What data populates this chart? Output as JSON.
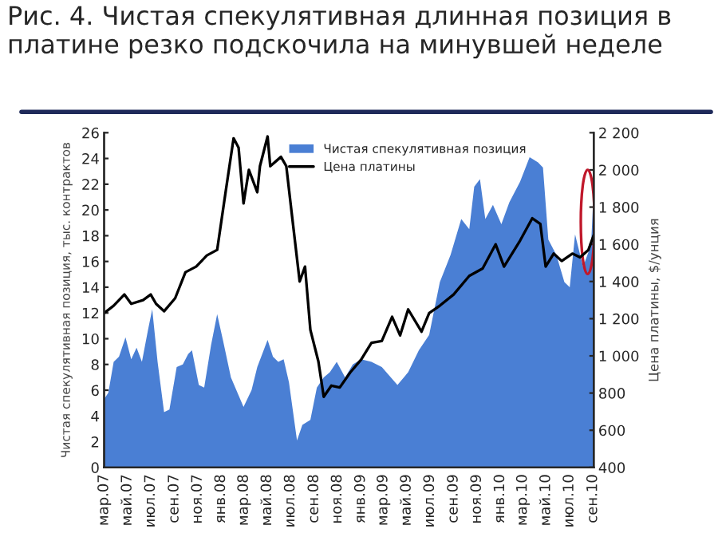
{
  "chart_data": {
    "type": "area",
    "title": "Рис. 4. Чистая спекулятивная длинная позиция в платине резко подскочила на минувшей неделе",
    "ylabel": "Чистая спекулятивная позиция, тыс. контрактов",
    "y2label": "Цена платины, $/унция",
    "xlim": [
      "2007-03-01",
      "2010-09-03"
    ],
    "xticks": [
      {
        "value": "2007-03-01",
        "label": "мар.07"
      },
      {
        "value": "2007-05-01",
        "label": "май.07"
      },
      {
        "value": "2007-07-01",
        "label": "июл.07"
      },
      {
        "value": "2007-09-01",
        "label": "сен.07"
      },
      {
        "value": "2007-11-01",
        "label": "ноя.07"
      },
      {
        "value": "2008-01-01",
        "label": "янв.08"
      },
      {
        "value": "2008-03-01",
        "label": "мар.08"
      },
      {
        "value": "2008-05-01",
        "label": "май.08"
      },
      {
        "value": "2008-07-01",
        "label": "июл.08"
      },
      {
        "value": "2008-09-01",
        "label": "сен.08"
      },
      {
        "value": "2008-11-01",
        "label": "ноя.08"
      },
      {
        "value": "2009-01-01",
        "label": "янв.09"
      },
      {
        "value": "2009-03-01",
        "label": "мар.09"
      },
      {
        "value": "2009-05-01",
        "label": "май.09"
      },
      {
        "value": "2009-07-01",
        "label": "июл.09"
      },
      {
        "value": "2009-09-01",
        "label": "сен.09"
      },
      {
        "value": "2009-11-01",
        "label": "ноя.09"
      },
      {
        "value": "2010-01-01",
        "label": "янв.10"
      },
      {
        "value": "2010-03-01",
        "label": "мар.10"
      },
      {
        "value": "2010-05-01",
        "label": "май.10"
      },
      {
        "value": "2010-07-01",
        "label": "июл.10"
      },
      {
        "value": "2010-09-01",
        "label": "сен.10"
      }
    ],
    "ylim": [
      0,
      26
    ],
    "yticks": [
      0,
      2,
      4,
      6,
      8,
      10,
      12,
      14,
      16,
      18,
      20,
      22,
      24,
      26
    ],
    "y2lim": [
      400,
      2200
    ],
    "y2ticks": [
      {
        "value": 400,
        "label": "400"
      },
      {
        "value": 600,
        "label": "600"
      },
      {
        "value": 800,
        "label": "800"
      },
      {
        "value": 1000,
        "label": "1 000"
      },
      {
        "value": 1200,
        "label": "1 200"
      },
      {
        "value": 1400,
        "label": "1 400"
      },
      {
        "value": 1600,
        "label": "1 600"
      },
      {
        "value": 1800,
        "label": "1 800"
      },
      {
        "value": 2000,
        "label": "2 000"
      },
      {
        "value": 2200,
        "label": "2 200"
      }
    ],
    "grid": false,
    "legend": "top",
    "series": [
      {
        "name": "Чистая спекулятивная позиция",
        "type": "area",
        "axis": "y",
        "color": "#4a7fd4",
        "x": [
          "2007-03-01",
          "2007-03-12",
          "2007-03-26",
          "2007-04-09",
          "2007-04-26",
          "2007-05-11",
          "2007-05-25",
          "2007-06-08",
          "2007-06-24",
          "2007-07-05",
          "2007-07-19",
          "2007-08-05",
          "2007-08-19",
          "2007-09-07",
          "2007-09-23",
          "2007-10-07",
          "2007-10-17",
          "2007-11-04",
          "2007-11-18",
          "2007-12-06",
          "2007-12-22",
          "2008-01-06",
          "2008-01-27",
          "2008-02-29",
          "2008-03-21",
          "2008-04-05",
          "2008-05-02",
          "2008-05-16",
          "2008-05-30",
          "2008-06-13",
          "2008-06-27",
          "2008-07-18",
          "2008-08-01",
          "2008-08-22",
          "2008-09-08",
          "2008-09-26",
          "2008-10-12",
          "2008-10-30",
          "2008-11-21",
          "2008-12-11",
          "2009-01-02",
          "2009-01-29",
          "2009-02-25",
          "2009-04-07",
          "2009-05-05",
          "2009-06-02",
          "2009-06-29",
          "2009-07-27",
          "2009-08-24",
          "2009-09-21",
          "2009-10-12",
          "2009-10-25",
          "2009-11-09",
          "2009-11-23",
          "2009-12-13",
          "2010-01-04",
          "2010-01-25",
          "2010-02-22",
          "2010-03-19",
          "2010-04-10",
          "2010-04-23",
          "2010-05-07",
          "2010-05-28",
          "2010-06-18",
          "2010-07-02",
          "2010-07-16",
          "2010-08-06",
          "2010-08-27",
          "2010-09-03"
        ],
        "values": [
          5.3,
          5.8,
          8.2,
          8.6,
          10.1,
          8.4,
          9.3,
          8.2,
          10.7,
          12.3,
          8.2,
          4.3,
          4.5,
          7.8,
          8.0,
          8.8,
          9.1,
          6.4,
          6.2,
          9.5,
          11.9,
          9.9,
          7.0,
          4.7,
          6.0,
          7.8,
          9.9,
          8.6,
          8.2,
          8.4,
          6.6,
          2.1,
          3.3,
          3.7,
          6.2,
          7.0,
          7.4,
          8.2,
          7.0,
          8.0,
          8.4,
          8.2,
          7.8,
          6.4,
          7.4,
          9.1,
          10.3,
          14.4,
          16.5,
          19.3,
          18.5,
          21.8,
          22.4,
          19.3,
          20.4,
          18.9,
          20.6,
          22.2,
          24.1,
          23.7,
          23.3,
          17.7,
          16.5,
          14.4,
          14.0,
          18.1,
          15.6,
          17.3,
          21.8
        ]
      },
      {
        "name": "Цена платины",
        "type": "line",
        "axis": "y2",
        "color": "#000000",
        "x": [
          "2007-03-01",
          "2007-03-26",
          "2007-04-23",
          "2007-05-11",
          "2007-06-11",
          "2007-07-01",
          "2007-07-15",
          "2007-08-05",
          "2007-09-03",
          "2007-09-30",
          "2007-10-28",
          "2007-11-25",
          "2007-12-22",
          "2008-01-13",
          "2008-02-03",
          "2008-02-16",
          "2008-02-29",
          "2008-03-14",
          "2008-04-05",
          "2008-04-12",
          "2008-05-02",
          "2008-05-09",
          "2008-06-06",
          "2008-06-20",
          "2008-07-04",
          "2008-07-25",
          "2008-08-08",
          "2008-08-22",
          "2008-09-12",
          "2008-09-26",
          "2008-10-16",
          "2008-11-07",
          "2008-12-04",
          "2009-01-02",
          "2009-01-29",
          "2009-02-25",
          "2009-03-24",
          "2009-04-14",
          "2009-05-05",
          "2009-06-09",
          "2009-06-29",
          "2009-07-27",
          "2009-09-01",
          "2009-10-12",
          "2009-11-16",
          "2009-12-20",
          "2010-01-11",
          "2010-02-22",
          "2010-03-26",
          "2010-04-16",
          "2010-04-30",
          "2010-05-21",
          "2010-06-11",
          "2010-07-09",
          "2010-07-29",
          "2010-08-20",
          "2010-09-03"
        ],
        "values": [
          1230,
          1270,
          1330,
          1280,
          1300,
          1330,
          1280,
          1240,
          1310,
          1450,
          1480,
          1540,
          1570,
          1880,
          2170,
          2120,
          1820,
          2000,
          1880,
          2020,
          2180,
          2020,
          2070,
          2020,
          1770,
          1400,
          1480,
          1140,
          970,
          780,
          840,
          830,
          910,
          980,
          1070,
          1080,
          1210,
          1110,
          1250,
          1130,
          1230,
          1270,
          1330,
          1430,
          1470,
          1600,
          1480,
          1620,
          1740,
          1710,
          1480,
          1550,
          1510,
          1550,
          1530,
          1570,
          1650
        ]
      }
    ]
  }
}
